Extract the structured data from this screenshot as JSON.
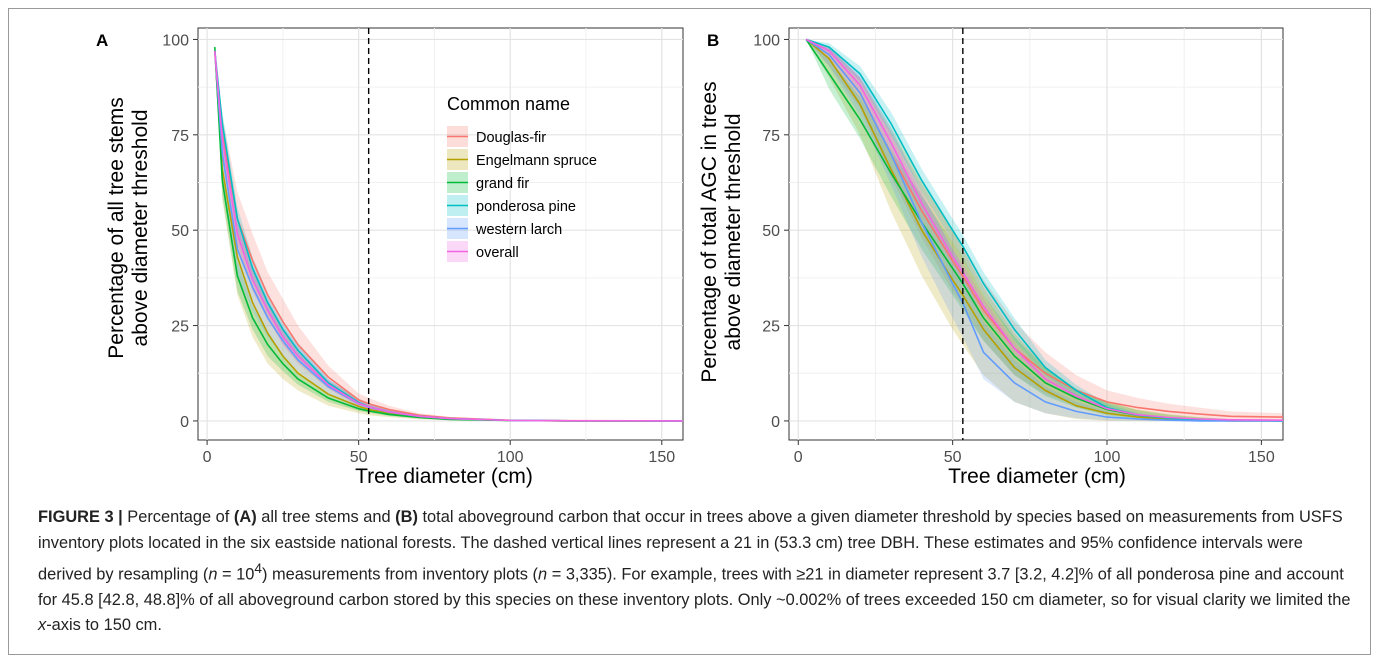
{
  "panels": {
    "A": {
      "letter": "A",
      "ylabel_line1": "Percentage of all tree stems",
      "ylabel_line2": "above diameter threshold",
      "xlabel": "Tree diameter (cm)"
    },
    "B": {
      "letter": "B",
      "ylabel_line1": "Percentage of total AGC in trees",
      "ylabel_line2": "above diameter threshold",
      "xlabel": "Tree diameter (cm)"
    }
  },
  "legend": {
    "title": "Common name"
  },
  "caption": {
    "figure_label": "FIGURE 3 |",
    "seg01": " Percentage of ",
    "bold_a": "(A)",
    "seg02": " all tree stems and ",
    "bold_b": "(B)",
    "seg03": " total aboveground carbon that occur in trees above a given diameter threshold by species based on measurements from USFS inventory plots located in the six eastside national forests. The dashed vertical lines represent a 21 in (53.3 cm) tree DBH. These estimates and 95% confidence intervals were derived by resampling (",
    "n1_var": "n",
    "n1_eq": " = 10",
    "n1_exp": "4",
    "seg04": ") measurements from inventory plots (",
    "n2_var": "n",
    "seg05": " = 3,335). For example, trees with ≥21 in diameter represent 3.7 [3.2, 4.2]% of all ponderosa pine and account for 45.8 [42.8, 48.8]% of all aboveground carbon stored by this species on these inventory plots. Only ~0.002% of trees exceeded 150 cm diameter, so for visual clarity we limited the ",
    "x_var": "x",
    "seg06": "-axis to 150 cm."
  },
  "chart_data": [
    {
      "panel": "A",
      "type": "line",
      "xlabel": "Tree diameter (cm)",
      "ylabel": "Percentage of all tree stems above diameter threshold",
      "xlim": [
        -3,
        157
      ],
      "ylim": [
        -5,
        103
      ],
      "x_ticks": [
        0,
        50,
        100,
        150
      ],
      "y_ticks": [
        0,
        25,
        50,
        75,
        100
      ],
      "grid": true,
      "legend_position": "inside-top-right",
      "reference_line_x": 53.3,
      "series": [
        {
          "name": "Douglas-fir",
          "color": "#F8766D",
          "x": [
            2.54,
            5,
            10,
            15,
            20,
            25,
            30,
            40,
            50,
            53.3,
            60,
            70,
            80,
            100,
            120,
            157
          ],
          "y": [
            97,
            75,
            53,
            42,
            33,
            26,
            20,
            11.5,
            5.5,
            4.5,
            3,
            1.5,
            0.8,
            0.2,
            0.05,
            0
          ],
          "lower": [
            97,
            68,
            46,
            35,
            27,
            20,
            15,
            8.5,
            3.8,
            3.1,
            2,
            1,
            0.5,
            0.1,
            0,
            0
          ],
          "upper": [
            97,
            80,
            60,
            49,
            39,
            32,
            25,
            14.5,
            7.2,
            6,
            4,
            2,
            1.1,
            0.3,
            0.1,
            0
          ]
        },
        {
          "name": "Engelmann spruce",
          "color": "#B79F00",
          "x": [
            2.54,
            5,
            10,
            15,
            20,
            25,
            30,
            40,
            50,
            53.3,
            60,
            70,
            80,
            100,
            120,
            157
          ],
          "y": [
            97,
            66,
            43,
            31,
            23,
            17,
            12.5,
            7,
            3.8,
            3,
            2,
            1,
            0.5,
            0.1,
            0,
            0
          ],
          "lower": [
            97,
            58,
            33,
            22,
            15,
            11,
            8,
            4,
            2,
            1.5,
            1,
            0.4,
            0.2,
            0,
            0,
            0
          ],
          "upper": [
            97,
            73,
            52,
            40,
            31,
            24,
            18,
            10.5,
            5.8,
            4.7,
            3.2,
            1.6,
            0.8,
            0.2,
            0.05,
            0
          ]
        },
        {
          "name": "grand fir",
          "color": "#00BA38",
          "x": [
            2.54,
            5,
            10,
            15,
            20,
            25,
            30,
            40,
            50,
            53.3,
            60,
            70,
            80,
            100,
            120,
            157
          ],
          "y": [
            98,
            63,
            38,
            27,
            20,
            15,
            11,
            6,
            3.2,
            2.6,
            1.7,
            0.9,
            0.4,
            0.1,
            0,
            0
          ],
          "lower": [
            98,
            59,
            34,
            24,
            17,
            13,
            9.5,
            5,
            2.6,
            2.1,
            1.3,
            0.6,
            0.3,
            0,
            0,
            0
          ],
          "upper": [
            98,
            67,
            42,
            30,
            23,
            17,
            12.5,
            7,
            3.8,
            3.1,
            2.1,
            1.1,
            0.5,
            0.15,
            0,
            0
          ]
        },
        {
          "name": "ponderosa pine",
          "color": "#00BFC4",
          "x": [
            2.54,
            5,
            10,
            15,
            20,
            25,
            30,
            40,
            50,
            53.3,
            60,
            70,
            80,
            100,
            120,
            157
          ],
          "y": [
            97,
            78,
            53,
            40,
            31,
            24,
            18.5,
            10,
            4.8,
            3.7,
            2.4,
            1.2,
            0.6,
            0.15,
            0.03,
            0
          ],
          "lower": [
            97,
            75,
            50,
            37,
            28.5,
            22,
            17,
            9,
            4.2,
            3.2,
            2,
            1,
            0.5,
            0.1,
            0,
            0
          ],
          "upper": [
            97,
            81,
            56,
            43,
            33.5,
            26,
            20,
            11,
            5.4,
            4.2,
            2.8,
            1.4,
            0.7,
            0.2,
            0.05,
            0
          ]
        },
        {
          "name": "western larch",
          "color": "#619CFF",
          "x": [
            2.54,
            5,
            10,
            15,
            20,
            25,
            30,
            40,
            50,
            53.3,
            60,
            70,
            80,
            100,
            120,
            157
          ],
          "y": [
            97,
            70,
            45,
            35,
            27,
            21,
            16,
            9,
            4.5,
            3.6,
            2.3,
            1.2,
            0.6,
            0.15,
            0.03,
            0
          ],
          "lower": [
            97,
            63,
            38,
            29,
            22,
            17,
            13,
            7,
            3.3,
            2.6,
            1.6,
            0.8,
            0.4,
            0.1,
            0,
            0
          ],
          "upper": [
            97,
            76,
            52,
            41,
            32,
            25,
            19.5,
            11,
            5.7,
            4.6,
            3,
            1.6,
            0.8,
            0.2,
            0.05,
            0
          ]
        },
        {
          "name": "overall",
          "color": "#F564E3",
          "x": [
            2.54,
            5,
            10,
            15,
            20,
            25,
            30,
            40,
            50,
            53.3,
            60,
            70,
            80,
            100,
            120,
            157
          ],
          "y": [
            97,
            74,
            49,
            37,
            29,
            22,
            17,
            9.5,
            4.6,
            3.7,
            2.4,
            1.2,
            0.6,
            0.15,
            0.03,
            0
          ],
          "lower": [
            97,
            71,
            46,
            34,
            26.5,
            20,
            15.5,
            8.5,
            4,
            3.2,
            2,
            1,
            0.5,
            0.1,
            0,
            0
          ],
          "upper": [
            97,
            77,
            52,
            40,
            31.5,
            24,
            18.5,
            10.5,
            5.2,
            4.2,
            2.8,
            1.4,
            0.7,
            0.2,
            0.05,
            0
          ]
        }
      ]
    },
    {
      "panel": "B",
      "type": "line",
      "xlabel": "Tree diameter (cm)",
      "ylabel": "Percentage of total AGC in trees above diameter threshold",
      "xlim": [
        -3,
        157
      ],
      "ylim": [
        -5,
        103
      ],
      "x_ticks": [
        0,
        50,
        100,
        150
      ],
      "y_ticks": [
        0,
        25,
        50,
        75,
        100
      ],
      "grid": true,
      "reference_line_x": 53.3,
      "series": [
        {
          "name": "Douglas-fir",
          "color": "#F8766D",
          "x": [
            2.54,
            10,
            20,
            30,
            40,
            50,
            53.3,
            60,
            70,
            80,
            90,
            100,
            110,
            120,
            130,
            140,
            157
          ],
          "y": [
            100,
            96,
            86,
            70,
            55,
            42,
            38,
            29,
            19,
            12.5,
            8,
            5,
            3.5,
            2.5,
            1.8,
            1.2,
            1
          ],
          "lower": [
            100,
            93,
            82,
            64,
            48,
            34,
            30,
            21,
            12,
            7,
            4,
            2.2,
            1.2,
            0.6,
            0.3,
            0.1,
            0
          ],
          "upper": [
            100,
            98,
            90,
            76,
            62,
            50,
            46,
            37,
            26,
            18,
            12,
            8,
            6,
            4.5,
            3.5,
            2.5,
            2
          ]
        },
        {
          "name": "Engelmann spruce",
          "color": "#B79F00",
          "x": [
            2.54,
            10,
            20,
            30,
            40,
            50,
            53.3,
            60,
            70,
            80,
            90,
            100,
            110,
            120,
            130,
            140,
            157
          ],
          "y": [
            100,
            95,
            83,
            66,
            50,
            37,
            33,
            24,
            14,
            8,
            4,
            2,
            1,
            0.5,
            0.2,
            0,
            0
          ],
          "lower": [
            100,
            90,
            75,
            55,
            38,
            24,
            20,
            12,
            5,
            2,
            0.5,
            0,
            0,
            0,
            0,
            0,
            0
          ],
          "upper": [
            100,
            98,
            90,
            77,
            63,
            50,
            45,
            35,
            23,
            14,
            8,
            5,
            3,
            1.8,
            1,
            0.5,
            0
          ]
        },
        {
          "name": "grand fir",
          "color": "#00BA38",
          "x": [
            2.54,
            10,
            20,
            30,
            40,
            50,
            53.3,
            60,
            70,
            80,
            90,
            100,
            110,
            120,
            130,
            140,
            157
          ],
          "y": [
            100,
            91,
            79,
            65,
            52,
            40,
            36,
            27,
            17,
            10,
            6,
            3,
            1.5,
            0.8,
            0.4,
            0.2,
            0
          ],
          "lower": [
            100,
            87,
            74,
            59,
            45,
            33,
            29,
            21,
            12,
            6.5,
            3.5,
            1.5,
            0.5,
            0.2,
            0,
            0,
            0
          ],
          "upper": [
            100,
            95,
            85,
            71,
            59,
            47,
            43,
            33,
            22,
            14,
            8.5,
            5,
            2.8,
            1.6,
            0.9,
            0.5,
            0.2
          ]
        },
        {
          "name": "ponderosa pine",
          "color": "#00BFC4",
          "x": [
            2.54,
            10,
            20,
            30,
            40,
            50,
            53.3,
            60,
            70,
            80,
            90,
            100,
            110,
            120,
            130,
            140,
            157
          ],
          "y": [
            100,
            98,
            91,
            78,
            63,
            50,
            45.8,
            36,
            24,
            14,
            8,
            3.5,
            1.5,
            0.7,
            0.3,
            0.1,
            0
          ],
          "lower": [
            100,
            97,
            89,
            75,
            60,
            47,
            42.8,
            33,
            21,
            12,
            6.5,
            2.8,
            1,
            0.4,
            0.1,
            0,
            0
          ],
          "upper": [
            100,
            99,
            93,
            81,
            66,
            53,
            48.8,
            39,
            27,
            16,
            9.5,
            4.5,
            2,
            1,
            0.5,
            0.2,
            0.1
          ]
        },
        {
          "name": "western larch",
          "color": "#619CFF",
          "x": [
            2.54,
            10,
            20,
            30,
            40,
            50,
            53.3,
            60,
            70,
            80,
            90,
            100,
            110,
            120,
            130,
            140,
            157
          ],
          "y": [
            100,
            96,
            86,
            70,
            52,
            36,
            31,
            18,
            10,
            5,
            2.5,
            1,
            0.5,
            0.2,
            0,
            0,
            0
          ],
          "lower": [
            100,
            93,
            80,
            62,
            43,
            27,
            22,
            11,
            5,
            2,
            0.7,
            0.2,
            0,
            0,
            0,
            0,
            0
          ],
          "upper": [
            100,
            98,
            91,
            77,
            60,
            45,
            40,
            26,
            16,
            9,
            5,
            2.5,
            1.3,
            0.6,
            0.3,
            0.1,
            0
          ]
        },
        {
          "name": "overall",
          "color": "#F564E3",
          "x": [
            2.54,
            10,
            20,
            30,
            40,
            50,
            53.3,
            60,
            70,
            80,
            90,
            100,
            110,
            120,
            130,
            140,
            157
          ],
          "y": [
            100,
            97,
            88,
            73,
            57,
            43,
            39,
            30,
            19,
            11,
            6.5,
            3.2,
            1.6,
            0.9,
            0.5,
            0.3,
            0.2
          ],
          "lower": [
            100,
            96,
            86,
            71,
            55,
            41,
            37,
            28,
            17.5,
            10,
            5.8,
            2.8,
            1.3,
            0.7,
            0.4,
            0.2,
            0.1
          ],
          "upper": [
            100,
            98,
            90,
            75,
            59,
            45,
            41,
            32,
            20.5,
            12,
            7.2,
            3.6,
            1.9,
            1.1,
            0.6,
            0.4,
            0.3
          ]
        }
      ]
    }
  ]
}
